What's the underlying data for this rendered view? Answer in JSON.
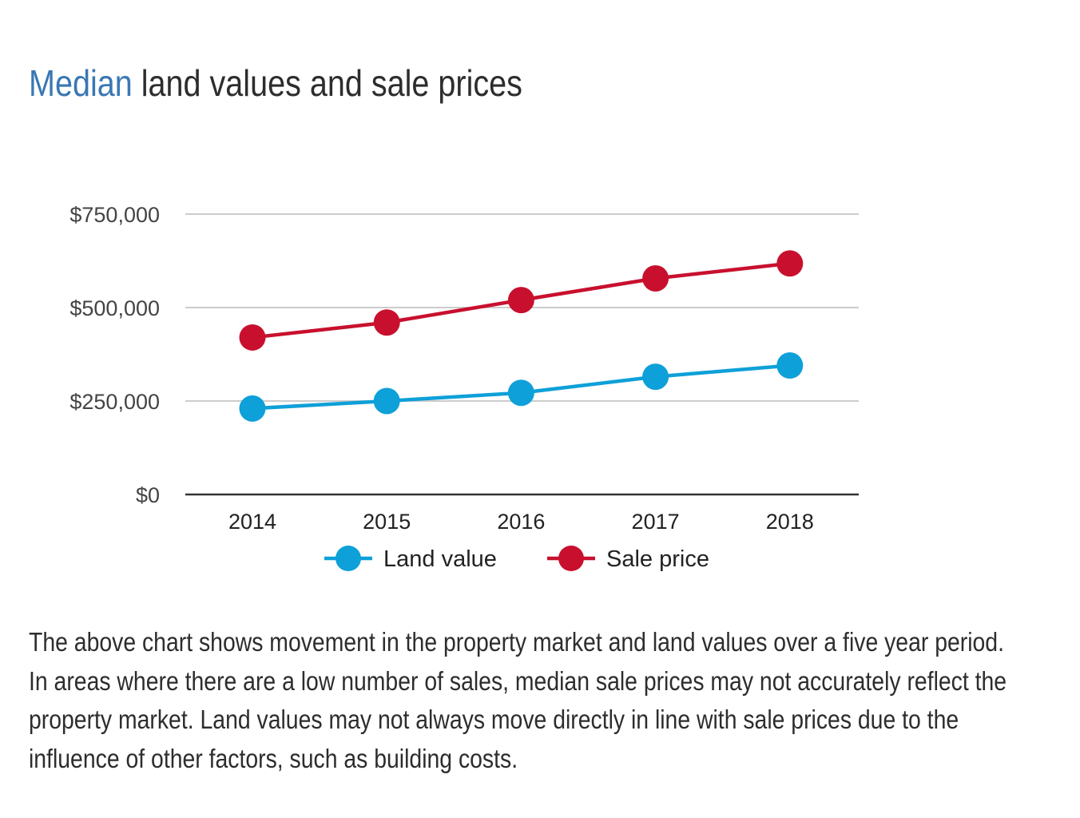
{
  "title": {
    "accent": "Median",
    "rest": " land values and sale prices"
  },
  "chart_data": {
    "type": "line",
    "categories": [
      "2014",
      "2015",
      "2016",
      "2017",
      "2018"
    ],
    "series": [
      {
        "name": "Land value",
        "color": "#0ea0d8",
        "values": [
          230000,
          250000,
          272000,
          315000,
          345000
        ]
      },
      {
        "name": "Sale price",
        "color": "#c8102e",
        "values": [
          420000,
          460000,
          520000,
          578000,
          618000
        ]
      }
    ],
    "ylim": [
      0,
      750000
    ],
    "yticks": [
      0,
      250000,
      500000,
      750000
    ],
    "ytick_labels": [
      "$0",
      "$250,000",
      "$500,000",
      "$750,000"
    ],
    "gridlines": true,
    "legend_position": "bottom"
  },
  "caption": "The above chart shows movement in the property market and land values over a five year period. In areas where there are a low number of sales, median sale prices may not accurately reflect the property market. Land values may not always move directly in line with sale prices due to the influence of other factors, such as building costs."
}
